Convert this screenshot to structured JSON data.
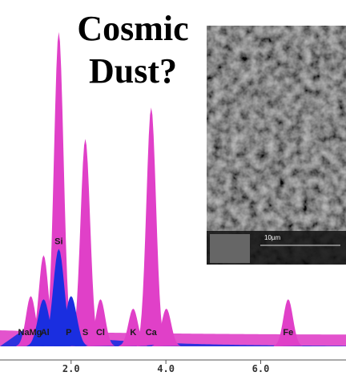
{
  "chart_data": {
    "type": "spectrum",
    "title_lines": [
      "Cosmic",
      "Dust?"
    ],
    "xlim": [
      0.5,
      7.8
    ],
    "xticks": [
      {
        "value": 2,
        "label": "2.0"
      },
      {
        "value": 4,
        "label": "4.0"
      },
      {
        "value": 6,
        "label": "6.0"
      }
    ],
    "series": [
      {
        "color": "#e040c8",
        "x": [
          1.15,
          1.42,
          1.74,
          2.3,
          2.62,
          3.31,
          3.69,
          4.01,
          6.58
        ],
        "values": [
          16,
          29,
          100,
          66,
          15,
          12,
          76,
          12,
          15
        ]
      },
      {
        "color": "#1a2ee0",
        "x": [
          1.42,
          1.74,
          2.0
        ],
        "values": [
          15,
          31,
          16
        ]
      }
    ],
    "element_labels": [
      {
        "text": "Na",
        "x": 1.0
      },
      {
        "text": "Mg",
        "x": 1.25
      },
      {
        "text": "Al",
        "x": 1.45
      },
      {
        "text": "Si",
        "x": 1.74
      },
      {
        "text": "P",
        "x": 1.95
      },
      {
        "text": "S",
        "x": 2.3
      },
      {
        "text": "Cl",
        "x": 2.62
      },
      {
        "text": "K",
        "x": 3.31
      },
      {
        "text": "Ca",
        "x": 3.69
      },
      {
        "text": "Fe",
        "x": 6.58
      }
    ],
    "inset_scale_label": "10µm"
  }
}
